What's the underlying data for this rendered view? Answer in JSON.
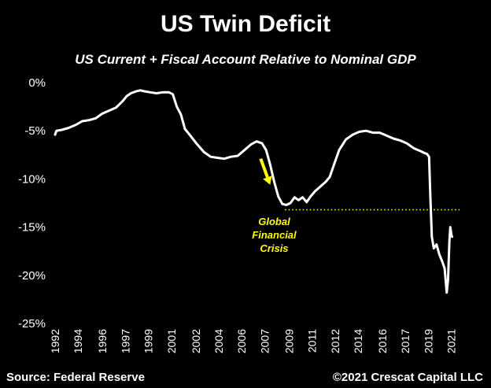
{
  "footer": {
    "source": "Source: Federal Reserve",
    "copyright": "©2021 Crescat Capital LLC"
  },
  "chart_data": {
    "type": "line",
    "title": "US Twin Deficit",
    "subtitle": "US Current + Fiscal Account Relative to Nominal GDP",
    "y_ticks": [
      {
        "value": 0,
        "label": "0%"
      },
      {
        "value": -5,
        "label": "-5%"
      },
      {
        "value": -10,
        "label": "-10%"
      },
      {
        "value": -15,
        "label": "-15%"
      },
      {
        "value": -20,
        "label": "-20%"
      },
      {
        "value": -25,
        "label": "-25%"
      }
    ],
    "ylim": [
      -25,
      0
    ],
    "x_range": [
      1992.0,
      2021.9
    ],
    "x_ticks": [
      {
        "value": 1992.0,
        "label": "1992"
      },
      {
        "value": 1993.7,
        "label": "1994"
      },
      {
        "value": 1995.5,
        "label": "1996"
      },
      {
        "value": 1997.2,
        "label": "1997"
      },
      {
        "value": 1998.9,
        "label": "1999"
      },
      {
        "value": 2000.6,
        "label": "2001"
      },
      {
        "value": 2002.4,
        "label": "2002"
      },
      {
        "value": 2004.1,
        "label": "2004"
      },
      {
        "value": 2005.8,
        "label": "2006"
      },
      {
        "value": 2007.5,
        "label": "2007"
      },
      {
        "value": 2009.3,
        "label": "2009"
      },
      {
        "value": 2011.0,
        "label": "2011"
      },
      {
        "value": 2012.7,
        "label": "2012"
      },
      {
        "value": 2014.4,
        "label": "2014"
      },
      {
        "value": 2016.2,
        "label": "2016"
      },
      {
        "value": 2017.9,
        "label": "2017"
      },
      {
        "value": 2019.6,
        "label": "2019"
      },
      {
        "value": 2021.3,
        "label": "2021"
      }
    ],
    "series": [
      {
        "color": "#ffffff",
        "points": [
          [
            1992.0,
            -5.4
          ],
          [
            1992.1,
            -5.0
          ],
          [
            1992.5,
            -4.9
          ],
          [
            1993.0,
            -4.7
          ],
          [
            1993.5,
            -4.4
          ],
          [
            1994.0,
            -4.0
          ],
          [
            1994.5,
            -3.9
          ],
          [
            1995.0,
            -3.7
          ],
          [
            1995.5,
            -3.2
          ],
          [
            1996.0,
            -2.9
          ],
          [
            1996.5,
            -2.6
          ],
          [
            1997.0,
            -1.9
          ],
          [
            1997.3,
            -1.4
          ],
          [
            1997.6,
            -1.1
          ],
          [
            1998.0,
            -0.9
          ],
          [
            1998.3,
            -0.8
          ],
          [
            1998.6,
            -0.9
          ],
          [
            1999.0,
            -1.0
          ],
          [
            1999.5,
            -1.1
          ],
          [
            2000.0,
            -1.0
          ],
          [
            2000.4,
            -1.0
          ],
          [
            2000.7,
            -1.2
          ],
          [
            2001.0,
            -2.5
          ],
          [
            2001.3,
            -3.3
          ],
          [
            2001.6,
            -4.8
          ],
          [
            2002.0,
            -5.5
          ],
          [
            2002.5,
            -6.4
          ],
          [
            2003.0,
            -7.2
          ],
          [
            2003.5,
            -7.7
          ],
          [
            2004.0,
            -7.8
          ],
          [
            2004.5,
            -7.9
          ],
          [
            2005.0,
            -7.7
          ],
          [
            2005.5,
            -7.6
          ],
          [
            2006.0,
            -7.0
          ],
          [
            2006.5,
            -6.4
          ],
          [
            2006.9,
            -6.1
          ],
          [
            2007.3,
            -6.3
          ],
          [
            2007.6,
            -7.0
          ],
          [
            2007.9,
            -8.5
          ],
          [
            2008.2,
            -10.3
          ],
          [
            2008.5,
            -11.8
          ],
          [
            2008.8,
            -12.6
          ],
          [
            2009.1,
            -12.7
          ],
          [
            2009.4,
            -12.5
          ],
          [
            2009.7,
            -11.9
          ],
          [
            2010.0,
            -12.2
          ],
          [
            2010.3,
            -11.9
          ],
          [
            2010.6,
            -12.4
          ],
          [
            2010.9,
            -11.8
          ],
          [
            2011.2,
            -11.3
          ],
          [
            2011.6,
            -10.8
          ],
          [
            2012.0,
            -10.3
          ],
          [
            2012.3,
            -9.8
          ],
          [
            2012.6,
            -8.6
          ],
          [
            2013.0,
            -7.0
          ],
          [
            2013.5,
            -5.9
          ],
          [
            2014.0,
            -5.4
          ],
          [
            2014.5,
            -5.1
          ],
          [
            2015.0,
            -5.0
          ],
          [
            2015.5,
            -5.2
          ],
          [
            2016.0,
            -5.2
          ],
          [
            2016.5,
            -5.5
          ],
          [
            2017.0,
            -5.8
          ],
          [
            2017.5,
            -6.0
          ],
          [
            2018.0,
            -6.3
          ],
          [
            2018.5,
            -6.8
          ],
          [
            2019.0,
            -7.1
          ],
          [
            2019.3,
            -7.3
          ],
          [
            2019.5,
            -7.4
          ],
          [
            2019.65,
            -7.7
          ],
          [
            2019.75,
            -12.0
          ],
          [
            2019.85,
            -16.0
          ],
          [
            2020.0,
            -17.2
          ],
          [
            2020.2,
            -16.8
          ],
          [
            2020.4,
            -17.8
          ],
          [
            2020.6,
            -18.5
          ],
          [
            2020.8,
            -19.3
          ],
          [
            2020.95,
            -21.8
          ],
          [
            2021.05,
            -20.5
          ],
          [
            2021.15,
            -16.5
          ],
          [
            2021.22,
            -15.0
          ],
          [
            2021.3,
            -15.8
          ],
          [
            2021.35,
            -16.0
          ]
        ]
      }
    ],
    "reference_line": {
      "y": -13.2,
      "x_start": 2009.0,
      "x_end": 2021.9,
      "style": "dotted",
      "color": "#ffff00"
    },
    "annotation": {
      "lines": [
        "Global",
        "Financial",
        "Crisis"
      ],
      "color": "#ffff00",
      "arrow": {
        "from": [
          2007.2,
          -7.9
        ],
        "to": [
          2007.9,
          -10.6
        ]
      },
      "text_x": 2008.2,
      "text_y": -14.8
    },
    "grid": false,
    "legend": "none"
  }
}
